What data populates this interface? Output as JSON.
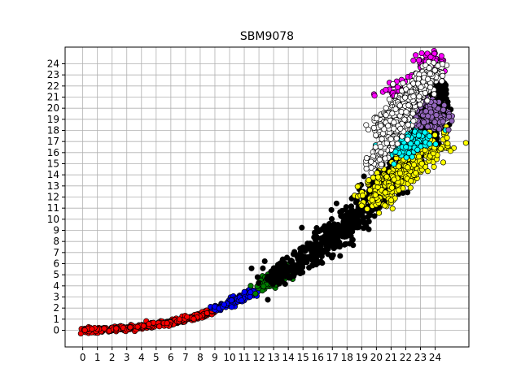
{
  "chart_data": {
    "type": "scatter",
    "title": "SBM9078",
    "xlabel": "",
    "ylabel": "",
    "xlim": [
      -1.2,
      26.3
    ],
    "ylim": [
      -1.5,
      25.5
    ],
    "grid": true,
    "x_ticks": [
      0,
      1,
      2,
      3,
      4,
      5,
      6,
      7,
      8,
      9,
      10,
      11,
      12,
      13,
      14,
      15,
      16,
      17,
      18,
      19,
      20,
      21,
      22,
      23,
      24
    ],
    "y_ticks": [
      0,
      1,
      2,
      3,
      4,
      5,
      6,
      7,
      8,
      9,
      10,
      11,
      12,
      13,
      14,
      15,
      16,
      17,
      18,
      19,
      20,
      21,
      22,
      23,
      24
    ],
    "marker": {
      "edgecolor": "#000000",
      "shape": "circle"
    },
    "clusters": [
      {
        "color": "#ff0000",
        "path": [
          [
            0,
            0
          ],
          [
            2,
            0.1
          ],
          [
            4,
            0.3
          ],
          [
            6,
            0.7
          ],
          [
            8,
            1.3
          ],
          [
            9,
            1.8
          ]
        ],
        "spread": 0.12
      },
      {
        "color": "#0000ff",
        "path": [
          [
            9,
            1.9
          ],
          [
            10,
            2.5
          ],
          [
            11,
            3.1
          ],
          [
            11.6,
            3.5
          ]
        ],
        "spread": 0.18
      },
      {
        "color": "#008000",
        "path": [
          [
            12,
            3.8
          ],
          [
            12.6,
            4.3
          ],
          [
            13.3,
            5.0
          ],
          [
            14,
            5.6
          ]
        ],
        "spread": 0.3
      },
      {
        "color": "#000000",
        "path": [
          [
            12.8,
            4.6
          ],
          [
            14,
            5.6
          ],
          [
            15.5,
            6.8
          ],
          [
            17,
            8.3
          ],
          [
            18.5,
            10
          ],
          [
            19.5,
            11.5
          ],
          [
            20.5,
            13
          ],
          [
            21.5,
            14.5
          ],
          [
            22.5,
            16.5
          ],
          [
            23.5,
            18.5
          ],
          [
            24,
            21
          ],
          [
            23.8,
            23
          ]
        ],
        "spread": 0.55
      },
      {
        "color": "#ffff00",
        "path": [
          [
            19.5,
            11.3
          ],
          [
            20.5,
            12.8
          ],
          [
            21.5,
            14
          ],
          [
            22.5,
            15
          ],
          [
            23.5,
            16.3
          ],
          [
            24.3,
            17.5
          ]
        ],
        "spread": 0.6
      },
      {
        "color": "#00ffff",
        "path": [
          [
            21,
            16
          ],
          [
            22,
            16.8
          ],
          [
            23,
            17.3
          ],
          [
            21.5,
            18
          ]
        ],
        "spread": 0.5
      },
      {
        "color": "#9467bd",
        "path": [
          [
            21.5,
            19.5
          ],
          [
            22.5,
            19.8
          ],
          [
            23.5,
            19.3
          ],
          [
            24.5,
            19
          ],
          [
            23,
            20.2
          ]
        ],
        "spread": 0.5
      },
      {
        "color": "#ff00ff",
        "path": [
          [
            21,
            21
          ],
          [
            22,
            21.5
          ],
          [
            23,
            22
          ],
          [
            23.6,
            23.5
          ],
          [
            23.8,
            24.5
          ]
        ],
        "spread": 0.45
      },
      {
        "color": "#ffffff",
        "path": [
          [
            20,
            18
          ],
          [
            20.5,
            18.8
          ],
          [
            24,
            23.5
          ],
          [
            23.2,
            22
          ],
          [
            19.8,
            15
          ]
        ],
        "spread": 0.35
      }
    ]
  }
}
